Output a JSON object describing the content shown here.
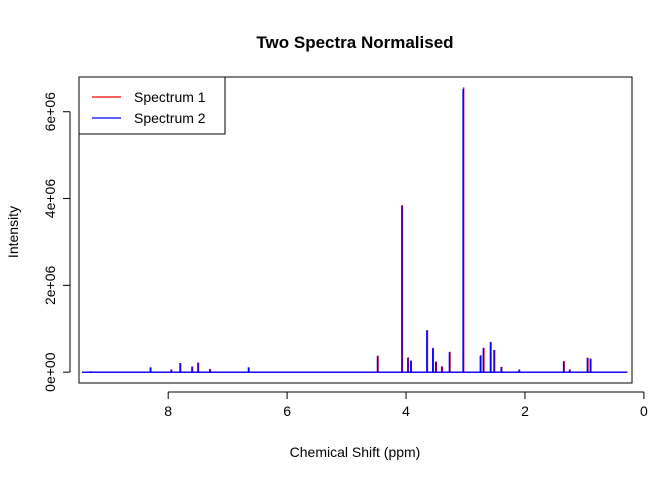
{
  "chart_data": {
    "type": "line",
    "title": "Two Spectra Normalised",
    "xlabel": "Chemical Shift (ppm)",
    "ylabel": "Intensity",
    "xlim": [
      9.5,
      0.2
    ],
    "ylim": [
      -250000,
      6800000
    ],
    "x_reversed": true,
    "x_ticks": [
      8,
      6,
      4,
      2,
      0
    ],
    "x_tick_labels": [
      "8",
      "6",
      "4",
      "2",
      "0"
    ],
    "y_ticks": [
      0,
      2000000,
      4000000,
      6000000
    ],
    "y_tick_labels": [
      "0e+00",
      "2e+06",
      "4e+06",
      "6e+06"
    ],
    "x_range": [
      9.45,
      0.28
    ],
    "grid": false,
    "legend": {
      "position": "top-left"
    },
    "series": [
      {
        "name": "Spectrum 1",
        "color": "#ff0000",
        "peaks": [
          {
            "x": 9.3,
            "y": 20000
          },
          {
            "x": 8.3,
            "y": 110000
          },
          {
            "x": 7.95,
            "y": 60000
          },
          {
            "x": 7.8,
            "y": 210000
          },
          {
            "x": 7.6,
            "y": 130000
          },
          {
            "x": 7.5,
            "y": 220000
          },
          {
            "x": 7.3,
            "y": 70000
          },
          {
            "x": 6.65,
            "y": 110000
          },
          {
            "x": 4.48,
            "y": 380000
          },
          {
            "x": 4.07,
            "y": 3850000
          },
          {
            "x": 3.97,
            "y": 340000
          },
          {
            "x": 3.92,
            "y": 270000
          },
          {
            "x": 3.65,
            "y": 970000
          },
          {
            "x": 3.55,
            "y": 560000
          },
          {
            "x": 3.5,
            "y": 240000
          },
          {
            "x": 3.4,
            "y": 130000
          },
          {
            "x": 3.27,
            "y": 470000
          },
          {
            "x": 3.04,
            "y": 6560000
          },
          {
            "x": 2.75,
            "y": 390000
          },
          {
            "x": 2.7,
            "y": 560000
          },
          {
            "x": 2.58,
            "y": 700000
          },
          {
            "x": 2.52,
            "y": 510000
          },
          {
            "x": 2.4,
            "y": 120000
          },
          {
            "x": 2.1,
            "y": 60000
          },
          {
            "x": 1.35,
            "y": 250000
          },
          {
            "x": 1.25,
            "y": 60000
          },
          {
            "x": 0.95,
            "y": 330000
          },
          {
            "x": 0.9,
            "y": 310000
          }
        ]
      },
      {
        "name": "Spectrum 2",
        "color": "#0000ff",
        "peaks": [
          {
            "x": 9.3,
            "y": 20000
          },
          {
            "x": 8.3,
            "y": 110000
          },
          {
            "x": 7.95,
            "y": 60000
          },
          {
            "x": 7.8,
            "y": 210000
          },
          {
            "x": 7.6,
            "y": 130000
          },
          {
            "x": 7.5,
            "y": 220000
          },
          {
            "x": 7.3,
            "y": 70000
          },
          {
            "x": 6.65,
            "y": 110000
          },
          {
            "x": 4.48,
            "y": 370000
          },
          {
            "x": 4.07,
            "y": 3830000
          },
          {
            "x": 3.97,
            "y": 330000
          },
          {
            "x": 3.92,
            "y": 260000
          },
          {
            "x": 3.65,
            "y": 960000
          },
          {
            "x": 3.55,
            "y": 550000
          },
          {
            "x": 3.5,
            "y": 240000
          },
          {
            "x": 3.4,
            "y": 130000
          },
          {
            "x": 3.27,
            "y": 460000
          },
          {
            "x": 3.04,
            "y": 6520000
          },
          {
            "x": 2.75,
            "y": 380000
          },
          {
            "x": 2.7,
            "y": 560000
          },
          {
            "x": 2.58,
            "y": 690000
          },
          {
            "x": 2.52,
            "y": 510000
          },
          {
            "x": 2.4,
            "y": 120000
          },
          {
            "x": 2.1,
            "y": 60000
          },
          {
            "x": 1.35,
            "y": 250000
          },
          {
            "x": 1.25,
            "y": 60000
          },
          {
            "x": 0.95,
            "y": 330000
          },
          {
            "x": 0.9,
            "y": 310000
          }
        ]
      }
    ]
  }
}
